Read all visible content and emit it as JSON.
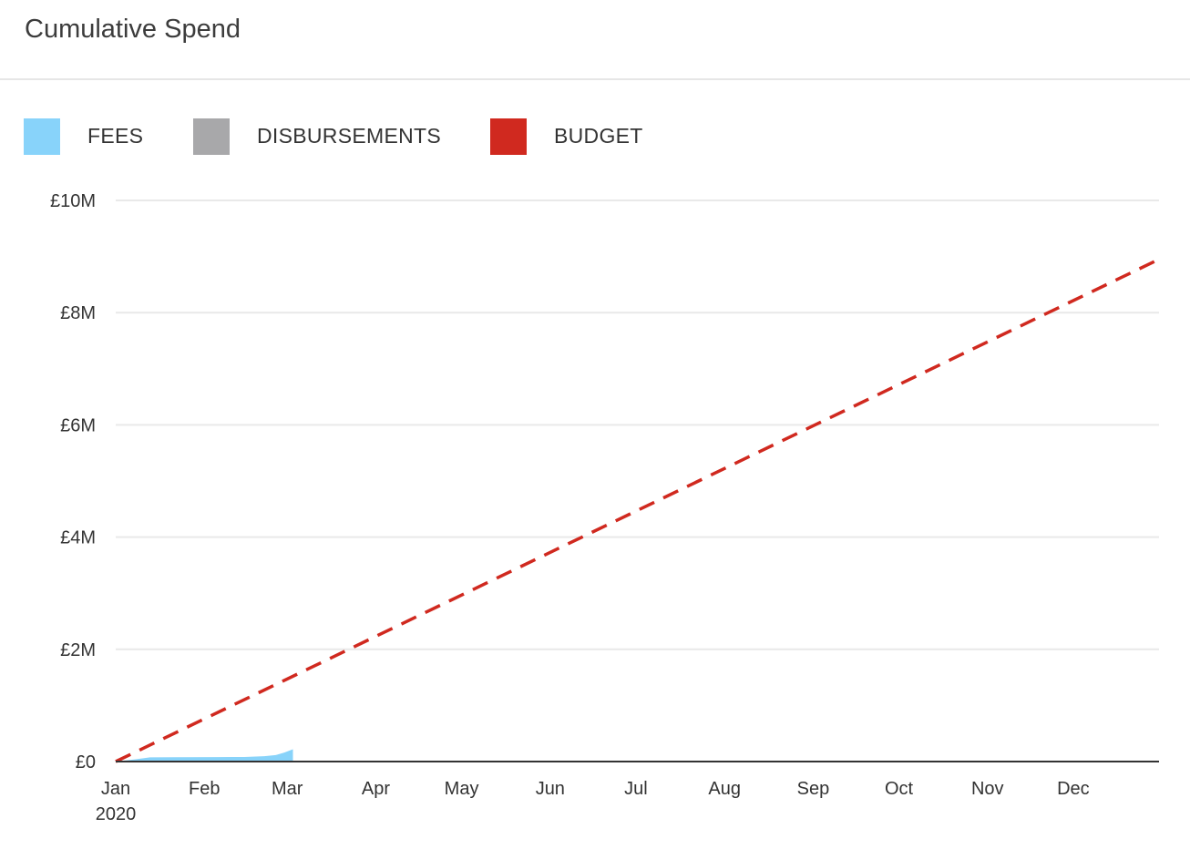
{
  "title": "Cumulative Spend",
  "legend": [
    {
      "label": "FEES",
      "color": "#88d3fa"
    },
    {
      "label": "DISBURSEMENTS",
      "color": "#a8a8aa"
    },
    {
      "label": "BUDGET",
      "color": "#d0291f"
    }
  ],
  "chart_data": {
    "type": "area",
    "x_start": "2020-01-01",
    "x_end": "2020-12-31",
    "x_ticks": [
      {
        "label": "Jan",
        "sublabel": "2020",
        "date": "2020-01-01"
      },
      {
        "label": "Feb",
        "date": "2020-02-01"
      },
      {
        "label": "Mar",
        "date": "2020-03-01"
      },
      {
        "label": "Apr",
        "date": "2020-04-01"
      },
      {
        "label": "May",
        "date": "2020-05-01"
      },
      {
        "label": "Jun",
        "date": "2020-06-01"
      },
      {
        "label": "Jul",
        "date": "2020-07-01"
      },
      {
        "label": "Aug",
        "date": "2020-08-01"
      },
      {
        "label": "Sep",
        "date": "2020-09-01"
      },
      {
        "label": "Oct",
        "date": "2020-10-01"
      },
      {
        "label": "Nov",
        "date": "2020-11-01"
      },
      {
        "label": "Dec",
        "date": "2020-12-01"
      }
    ],
    "y_ticks": [
      {
        "label": "£0",
        "value": 0
      },
      {
        "label": "£2M",
        "value": 2000000
      },
      {
        "label": "£4M",
        "value": 4000000
      },
      {
        "label": "£6M",
        "value": 6000000
      },
      {
        "label": "£8M",
        "value": 8000000
      },
      {
        "label": "£10M",
        "value": 10000000
      }
    ],
    "ylim": [
      0,
      10000000
    ],
    "grid": true,
    "legend_position": "top-left",
    "series": [
      {
        "name": "FEES",
        "type": "area",
        "color": "#88d3fa",
        "points": [
          {
            "x": "2020-01-01",
            "y": 0
          },
          {
            "x": "2020-01-08",
            "y": 40000
          },
          {
            "x": "2020-01-13",
            "y": 75000
          },
          {
            "x": "2020-01-22",
            "y": 78000
          },
          {
            "x": "2020-02-05",
            "y": 80000
          },
          {
            "x": "2020-02-15",
            "y": 82000
          },
          {
            "x": "2020-02-22",
            "y": 95000
          },
          {
            "x": "2020-02-26",
            "y": 115000
          },
          {
            "x": "2020-02-29",
            "y": 160000
          },
          {
            "x": "2020-03-03",
            "y": 220000
          }
        ]
      },
      {
        "name": "DISBURSEMENTS",
        "type": "area",
        "color": "#a8a8aa",
        "points": [
          {
            "x": "2020-01-01",
            "y": 0
          },
          {
            "x": "2020-03-03",
            "y": 5000
          }
        ]
      },
      {
        "name": "BUDGET",
        "type": "line",
        "dashed": true,
        "color": "#d0291f",
        "points": [
          {
            "x": "2020-01-01",
            "y": 0
          },
          {
            "x": "2020-12-31",
            "y": 8950000
          }
        ]
      }
    ]
  }
}
